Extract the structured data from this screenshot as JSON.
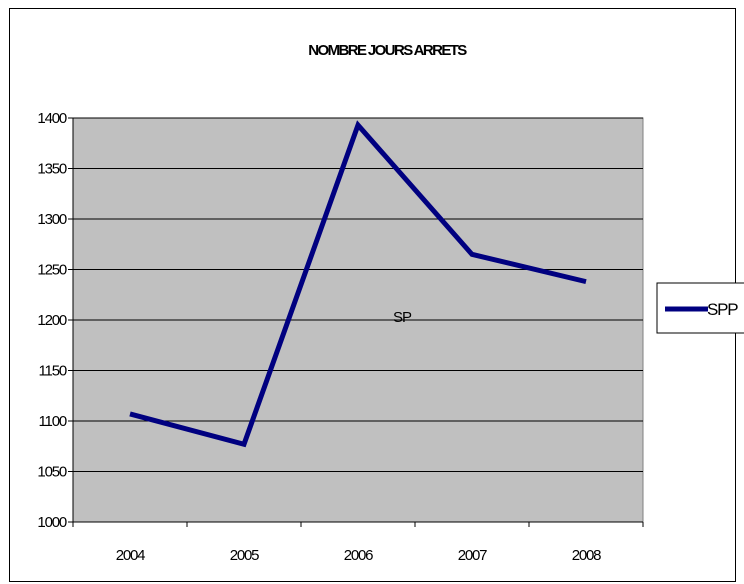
{
  "chart_data": {
    "type": "line",
    "title": "NOMBRE JOURS ARRETS",
    "categories": [
      "2004",
      "2005",
      "2006",
      "2007",
      "2008"
    ],
    "series": [
      {
        "name": "SPP",
        "values": [
          1107,
          1077,
          1393,
          1265,
          1238
        ],
        "color": "#000080"
      }
    ],
    "annotation": "SP",
    "ylim": [
      1000,
      1400
    ],
    "yticks": [
      1000,
      1050,
      1100,
      1150,
      1200,
      1250,
      1300,
      1350,
      1400
    ],
    "grid": true,
    "legend": "right",
    "plot_background": "#c0c0c0"
  }
}
